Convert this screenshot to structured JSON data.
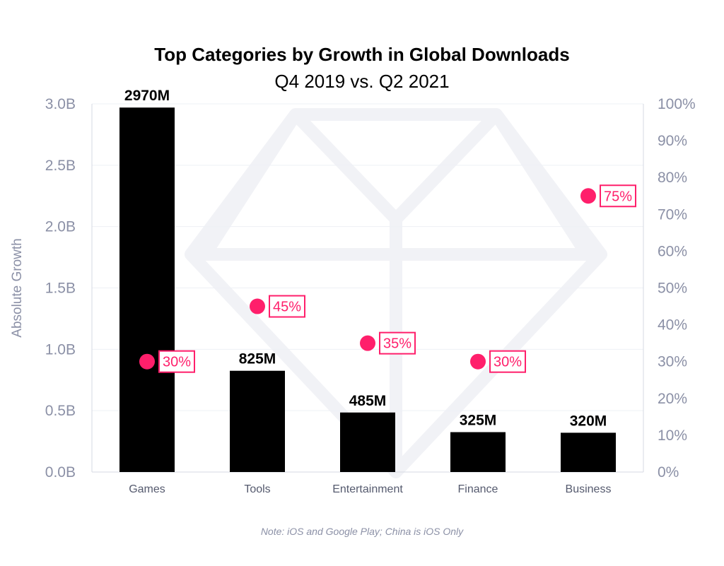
{
  "chart_data": {
    "type": "bar",
    "title": "Top Categories by Growth in Global Downloads",
    "subtitle": "Q4 2019 vs. Q2 2021",
    "categories": [
      "Games",
      "Tools",
      "Entertainment",
      "Finance",
      "Business"
    ],
    "series": [
      {
        "type": "bar",
        "axis": "left",
        "values": [
          2970,
          825,
          485,
          325,
          320
        ],
        "value_labels": [
          "2970M",
          "825M",
          "485M",
          "325M",
          "320M"
        ],
        "color": "#000000"
      },
      {
        "type": "scatter",
        "axis": "right",
        "values": [
          30,
          45,
          35,
          30,
          75
        ],
        "value_labels": [
          "30%",
          "45%",
          "35%",
          "30%",
          "75%"
        ],
        "color": "#ff1f6b"
      }
    ],
    "ylabel": "Absolute Growth",
    "ylim": [
      0,
      3000
    ],
    "yticks": [
      0,
      500,
      1000,
      1500,
      2000,
      2500,
      3000
    ],
    "ytick_labels": [
      "0.0B",
      "0.5B",
      "1.0B",
      "1.5B",
      "2.0B",
      "2.5B",
      "3.0B"
    ],
    "y2lim": [
      0,
      100
    ],
    "y2ticks": [
      0,
      10,
      20,
      30,
      40,
      50,
      60,
      70,
      80,
      90,
      100
    ],
    "y2tick_labels": [
      "0%",
      "10%",
      "20%",
      "30%",
      "40%",
      "50%",
      "60%",
      "70%",
      "80%",
      "90%",
      "100%"
    ],
    "grid": true,
    "note": "Note: iOS and Google Play; China is iOS Only"
  },
  "colors": {
    "bar": "#000000",
    "marker": "#ff1f6b",
    "axis_text": "#8b90a6",
    "grid": "#eef0f5",
    "watermark": "#f1f2f6"
  }
}
